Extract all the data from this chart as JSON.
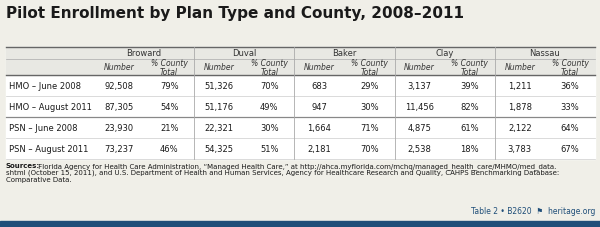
{
  "title": "Pilot Enrollment by Plan Type and County, 2008–2011",
  "columns": [
    "Broward",
    "Duval",
    "Baker",
    "Clay",
    "Nassau"
  ],
  "row_labels": [
    "HMO – June 2008",
    "HMO – August 2011",
    "PSN – June 2008",
    "PSN – August 2011"
  ],
  "data": [
    [
      "92,508",
      "79%",
      "51,326",
      "70%",
      "683",
      "29%",
      "3,137",
      "39%",
      "1,211",
      "36%"
    ],
    [
      "87,305",
      "54%",
      "51,176",
      "49%",
      "947",
      "30%",
      "11,456",
      "82%",
      "1,878",
      "33%"
    ],
    [
      "23,930",
      "21%",
      "22,321",
      "30%",
      "1,664",
      "71%",
      "4,875",
      "61%",
      "2,122",
      "64%"
    ],
    [
      "73,237",
      "46%",
      "54,325",
      "51%",
      "2,181",
      "70%",
      "2,538",
      "18%",
      "3,783",
      "67%"
    ]
  ],
  "sources_line1_bold": "Sources:",
  "sources_line1_normal": " Florida Agency for Health Care Administration, “Managed Health Care,” at http://ahca.myflorida.com/mchq/managed_health_care/MHMO/med_data.",
  "sources_line2": "shtml (October 15, 2011), and U.S. Department of Health and Human Services, Agency for Healthcare Research and Quality, CAHPS Benchmarking Database:",
  "sources_line3": "Comparative Data.",
  "footer_text": "Table 2 • B2620",
  "footer_icon": "⎈",
  "footer_site": "heritage.org",
  "bg_color": "#f0efe8",
  "table_header_bg": "#e8e8e3",
  "table_white_bg": "#ffffff",
  "text_dark": "#1a1a1a",
  "text_med": "#333333",
  "footer_link_color": "#1f4e79",
  "bottom_bar_color": "#1f4e79",
  "line_color_heavy": "#666666",
  "line_color_light": "#cccccc",
  "title_fontsize": 11,
  "county_fontsize": 6.0,
  "subhdr_fontsize": 5.5,
  "data_fontsize": 6.0,
  "src_fontsize": 5.0,
  "footer_fontsize": 5.5
}
